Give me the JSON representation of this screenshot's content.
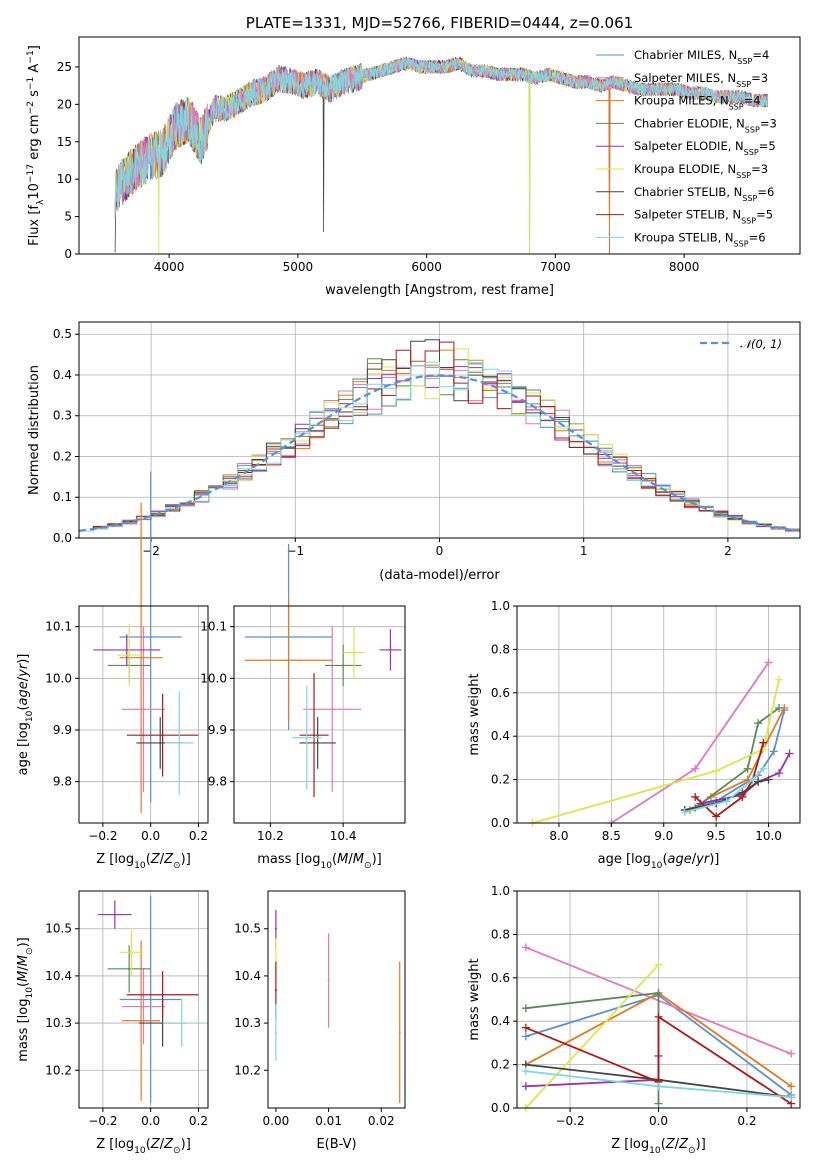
{
  "chart_data": [
    {
      "id": "spectrum",
      "type": "line",
      "title": "PLATE=1331, MJD=52766, FIBERID=0444, z=0.061",
      "xlabel": "wavelength [Angstrom, rest frame]",
      "ylabel": "Flux [fλ10⁻¹⁷ erg cm⁻² s⁻¹ A⁻¹]",
      "xlim": [
        3300,
        8900
      ],
      "ylim": [
        0,
        29
      ],
      "xticks": [
        4000,
        5000,
        6000,
        7000,
        8000
      ],
      "yticks": [
        0,
        5,
        10,
        15,
        20,
        25
      ],
      "grid": false,
      "legend_placement": "right",
      "data_envelope": {
        "x": [
          3580,
          3650,
          3750,
          3850,
          3950,
          4050,
          4150,
          4250,
          4350,
          4450,
          4550,
          4650,
          4750,
          4850,
          4950,
          5050,
          5150,
          5250,
          5350,
          5450,
          5550,
          5650,
          5750,
          5850,
          5950,
          6050,
          6150,
          6250,
          6350,
          6450,
          6550,
          6650,
          6750,
          6850,
          6950,
          7050,
          7150,
          7250,
          7350,
          7450,
          7550,
          7650,
          7750,
          7850,
          7950,
          8050,
          8150,
          8250,
          8350,
          8450,
          8550,
          8650
        ],
        "y": [
          8,
          10,
          11.5,
          13,
          13.5,
          17,
          18,
          15,
          19.5,
          19.5,
          20.5,
          21.5,
          22,
          23.5,
          23,
          22.5,
          23,
          22,
          23,
          23.5,
          24,
          24.5,
          25,
          25.5,
          25,
          25,
          25,
          25.5,
          24.5,
          24.5,
          24,
          24,
          24,
          23.5,
          24,
          23.5,
          23,
          23,
          22.5,
          23,
          22.5,
          22,
          22,
          22,
          22,
          21.5,
          21.5,
          21,
          21,
          21,
          20.5,
          20.5
        ]
      },
      "series": [
        {
          "name": "Chabrier MILES, N$_{SSP}$=4",
          "label": "Chabrier MILES, N",
          "sub": "SSP",
          "suffix": "=4",
          "color": "#5b8fd4"
        },
        {
          "name": "Salpeter MILES, N$_{SSP}$=3",
          "label": "Salpeter MILES, N",
          "sub": "SSP",
          "suffix": "=3",
          "color": "#e377c2"
        },
        {
          "name": "Kroupa MILES, N$_{SSP}$=4",
          "label": "Kroupa MILES, N",
          "sub": "SSP",
          "suffix": "=4",
          "color": "#e07b20"
        },
        {
          "name": "Chabrier ELODIE, N$_{SSP}$=3",
          "label": "Chabrier ELODIE, N",
          "sub": "SSP",
          "suffix": "=3",
          "color": "#5a8a5a"
        },
        {
          "name": "Salpeter ELODIE, N$_{SSP}$=5",
          "label": "Salpeter ELODIE, N",
          "sub": "SSP",
          "suffix": "=5",
          "color": "#9b30b0"
        },
        {
          "name": "Kroupa ELODIE, N$_{SSP}$=3",
          "label": "Kroupa ELODIE, N",
          "sub": "SSP",
          "suffix": "=3",
          "color": "#d8e84a"
        },
        {
          "name": "Chabrier STELIB, N$_{SSP}$=6",
          "label": "Chabrier STELIB, N",
          "sub": "SSP",
          "suffix": "=6",
          "color": "#444444"
        },
        {
          "name": "Salpeter STELIB, N$_{SSP}$=5",
          "label": "Salpeter STELIB, N",
          "sub": "SSP",
          "suffix": "=5",
          "color": "#b01818"
        },
        {
          "name": "Kroupa STELIB, N$_{SSP}$=6",
          "label": "Kroupa STELIB, N",
          "sub": "SSP",
          "suffix": "=6",
          "color": "#7fd6e0"
        }
      ]
    },
    {
      "id": "residuals",
      "type": "bar",
      "xlabel": "(data-model)/error",
      "ylabel": "Normed distribution",
      "xlim": [
        -2.5,
        2.5
      ],
      "ylim": [
        0,
        0.53
      ],
      "xticks": [
        -2,
        -1,
        0,
        1,
        2
      ],
      "yticks": [
        0.0,
        0.1,
        0.2,
        0.3,
        0.4,
        0.5
      ],
      "grid": true,
      "legend": "𝒩(0, 1)",
      "legend_placement": "top-right",
      "reference_curve": "gaussian mean 0 sigma 1",
      "bin_width": 0.1
    },
    {
      "id": "age-vs-Z",
      "type": "scatter",
      "xlabel": "Z [log10(Z/Z⊙)]",
      "ylabel": "age [log10(age/yr)]",
      "xlim": [
        -0.3,
        0.24
      ],
      "ylim": [
        9.72,
        10.14
      ],
      "xticks": [
        -0.2,
        0.0,
        0.2
      ],
      "yticks": [
        9.8,
        9.9,
        10.0,
        10.1
      ],
      "grid": true,
      "points": [
        {
          "x": 0.0,
          "y": 10.08,
          "xerr": 0.13,
          "yerr": 0.32,
          "color": "#5b8fd4"
        },
        {
          "x": -0.03,
          "y": 9.94,
          "xerr": 0.09,
          "yerr": 0.16,
          "color": "#e377c2"
        },
        {
          "x": -0.04,
          "y": 10.04,
          "xerr": 0.09,
          "yerr": 0.3,
          "color": "#e07b20"
        },
        {
          "x": -0.09,
          "y": 10.025,
          "xerr": 0.09,
          "yerr": 0.03,
          "color": "#5a8a5a"
        },
        {
          "x": -0.1,
          "y": 10.055,
          "xerr": 0.14,
          "yerr": 0.03,
          "color": "#9b30b0"
        },
        {
          "x": -0.09,
          "y": 10.045,
          "xerr": 0.05,
          "yerr": 0.06,
          "color": "#d8e84a"
        },
        {
          "x": 0.04,
          "y": 9.875,
          "xerr": 0.1,
          "yerr": 0.05,
          "color": "#444444"
        },
        {
          "x": 0.05,
          "y": 9.89,
          "xerr": 0.15,
          "yerr": 0.08,
          "color": "#b01818"
        },
        {
          "x": 0.12,
          "y": 9.875,
          "xerr": 0.06,
          "yerr": 0.1,
          "color": "#7fd6e0"
        }
      ]
    },
    {
      "id": "age-vs-mass",
      "type": "scatter",
      "xlabel": "mass [log10(M/M⊙)]",
      "ylabel": "",
      "xlim": [
        10.1,
        10.57
      ],
      "ylim": [
        9.72,
        10.14
      ],
      "xticks": [
        10.2,
        10.4
      ],
      "yticks": [
        9.8,
        9.9,
        10.0,
        10.1
      ],
      "grid": true,
      "points": [
        {
          "x": 10.25,
          "y": 10.08,
          "xerr": 0.12,
          "yerr": 0.18,
          "color": "#5b8fd4"
        },
        {
          "x": 10.37,
          "y": 9.94,
          "xerr": 0.08,
          "yerr": 0.16,
          "color": "#e377c2"
        },
        {
          "x": 10.25,
          "y": 10.035,
          "xerr": 0.12,
          "yerr": 0.12,
          "color": "#e07b20"
        },
        {
          "x": 10.4,
          "y": 10.025,
          "xerr": 0.05,
          "yerr": 0.04,
          "color": "#5a8a5a"
        },
        {
          "x": 10.53,
          "y": 10.055,
          "xerr": 0.03,
          "yerr": 0.04,
          "color": "#9b30b0"
        },
        {
          "x": 10.43,
          "y": 10.05,
          "xerr": 0.03,
          "yerr": 0.05,
          "color": "#d8e84a"
        },
        {
          "x": 10.33,
          "y": 9.875,
          "xerr": 0.05,
          "yerr": 0.05,
          "color": "#444444"
        },
        {
          "x": 10.32,
          "y": 9.89,
          "xerr": 0.04,
          "yerr": 0.12,
          "color": "#b01818"
        },
        {
          "x": 10.3,
          "y": 9.885,
          "xerr": 0.04,
          "yerr": 0.1,
          "color": "#7fd6e0"
        }
      ]
    },
    {
      "id": "weights-vs-age",
      "type": "line",
      "xlabel": "age [log10(age/yr)]",
      "ylabel": "mass weight",
      "xlim": [
        7.6,
        10.3
      ],
      "ylim": [
        0,
        1
      ],
      "xticks": [
        8.0,
        8.5,
        9.0,
        9.5,
        10.0
      ],
      "yticks": [
        0.0,
        0.2,
        0.4,
        0.6,
        0.8,
        1.0
      ],
      "grid": true,
      "series": [
        {
          "color": "#5b8fd4",
          "x": [
            9.2,
            9.5,
            9.9,
            10.05,
            10.15
          ],
          "y": [
            0.06,
            0.1,
            0.22,
            0.33,
            0.52
          ]
        },
        {
          "color": "#e377c2",
          "x": [
            8.5,
            9.3,
            10.0
          ],
          "y": [
            0.0,
            0.25,
            0.74
          ]
        },
        {
          "color": "#e07b20",
          "x": [
            9.25,
            9.45,
            9.8,
            10.15
          ],
          "y": [
            0.06,
            0.12,
            0.2,
            0.53
          ]
        },
        {
          "color": "#5a8a5a",
          "x": [
            9.3,
            9.8,
            9.9,
            10.1
          ],
          "y": [
            0.07,
            0.25,
            0.46,
            0.53
          ]
        },
        {
          "color": "#9b30b0",
          "x": [
            9.35,
            9.75,
            9.9,
            10.1,
            10.2
          ],
          "y": [
            0.09,
            0.13,
            0.19,
            0.23,
            0.32
          ]
        },
        {
          "color": "#d8e84a",
          "x": [
            7.75,
            9.5,
            9.95,
            10.1
          ],
          "y": [
            0.0,
            0.24,
            0.34,
            0.66
          ]
        },
        {
          "color": "#444444",
          "x": [
            9.2,
            9.5,
            9.75,
            9.9,
            10.0
          ],
          "y": [
            0.06,
            0.09,
            0.14,
            0.19,
            0.2
          ]
        },
        {
          "color": "#b01818",
          "x": [
            9.3,
            9.5,
            9.75,
            9.85,
            9.95
          ],
          "y": [
            0.12,
            0.03,
            0.12,
            0.2,
            0.37
          ]
        },
        {
          "color": "#7fd6e0",
          "x": [
            9.2,
            9.6,
            9.85,
            9.95
          ],
          "y": [
            0.05,
            0.1,
            0.2,
            0.25
          ]
        }
      ]
    },
    {
      "id": "mass-vs-Z",
      "type": "scatter",
      "xlabel": "Z [log10(Z/Z⊙)]",
      "ylabel": "mass [log10(M/M⊙)]",
      "xlim": [
        -0.3,
        0.24
      ],
      "ylim": [
        10.12,
        10.58
      ],
      "xticks": [
        -0.2,
        0.0,
        0.2
      ],
      "yticks": [
        10.2,
        10.3,
        10.4,
        10.5
      ],
      "grid": true,
      "points": [
        {
          "x": 0.0,
          "y": 10.35,
          "xerr": 0.13,
          "yerr": 0.22,
          "color": "#5b8fd4"
        },
        {
          "x": -0.03,
          "y": 10.335,
          "xerr": 0.09,
          "yerr": 0.08,
          "color": "#e377c2"
        },
        {
          "x": -0.04,
          "y": 10.305,
          "xerr": 0.08,
          "yerr": 0.17,
          "color": "#e07b20"
        },
        {
          "x": -0.09,
          "y": 10.415,
          "xerr": 0.09,
          "yerr": 0.05,
          "color": "#5a8a5a"
        },
        {
          "x": -0.15,
          "y": 10.53,
          "xerr": 0.07,
          "yerr": 0.03,
          "color": "#9b30b0"
        },
        {
          "x": -0.08,
          "y": 10.45,
          "xerr": 0.05,
          "yerr": 0.05,
          "color": "#d8e84a"
        },
        {
          "x": 0.05,
          "y": 10.3,
          "xerr": 0.1,
          "yerr": 0.05,
          "color": "#444444"
        },
        {
          "x": 0.05,
          "y": 10.36,
          "xerr": 0.15,
          "yerr": 0.05,
          "color": "#b01818"
        },
        {
          "x": 0.13,
          "y": 10.3,
          "xerr": 0.08,
          "yerr": 0.05,
          "color": "#7fd6e0"
        }
      ]
    },
    {
      "id": "mass-vs-ebv",
      "type": "scatter",
      "xlabel": "E(B-V)",
      "ylabel": "",
      "xlim": [
        -0.0015,
        0.0245
      ],
      "ylim": [
        10.12,
        10.58
      ],
      "xticks": [
        0.0,
        0.01,
        0.02
      ],
      "yticks": [
        10.2,
        10.3,
        10.4,
        10.5
      ],
      "grid": false,
      "points": [
        {
          "x": 0.0,
          "y": 10.5,
          "yerr": 0.04,
          "color": "#9b30b0"
        },
        {
          "x": 0.0,
          "y": 10.43,
          "yerr": 0.05,
          "color": "#d8e84a"
        },
        {
          "x": 0.0,
          "y": 10.37,
          "yerr": 0.06,
          "color": "#b01818"
        },
        {
          "x": 0.0,
          "y": 10.28,
          "yerr": 0.06,
          "color": "#7fd6e0"
        },
        {
          "x": 0.01,
          "y": 10.39,
          "yerr": 0.1,
          "color": "#e377c2"
        },
        {
          "x": 0.0235,
          "y": 10.28,
          "yerr": 0.15,
          "color": "#e07b20"
        }
      ]
    },
    {
      "id": "weights-vs-Z",
      "type": "line",
      "xlabel": "Z [log10(Z/Z⊙)]",
      "ylabel": "mass weight",
      "xlim": [
        -0.32,
        0.32
      ],
      "ylim": [
        0,
        1
      ],
      "xticks": [
        -0.2,
        0.0,
        0.2
      ],
      "yticks": [
        0.0,
        0.2,
        0.4,
        0.6,
        0.8,
        1.0
      ],
      "grid": true,
      "series": [
        {
          "color": "#5b8fd4",
          "x": [
            -0.3,
            0.0,
            0.3
          ],
          "y": [
            0.33,
            0.52,
            0.06
          ]
        },
        {
          "color": "#e377c2",
          "x": [
            -0.3,
            0.3
          ],
          "y": [
            0.74,
            0.25
          ]
        },
        {
          "color": "#e07b20",
          "x": [
            -0.3,
            0.0,
            0.3
          ],
          "y": [
            0.2,
            0.53,
            0.1
          ]
        },
        {
          "color": "#5a8a5a",
          "x": [
            -0.3,
            0.0,
            0.0
          ],
          "y": [
            0.46,
            0.53,
            0.02
          ]
        },
        {
          "color": "#9b30b0",
          "x": [
            -0.3,
            0.0,
            0.0
          ],
          "y": [
            0.1,
            0.13,
            0.24
          ]
        },
        {
          "color": "#d8e84a",
          "x": [
            -0.3,
            0.0
          ],
          "y": [
            0.0,
            0.66
          ]
        },
        {
          "color": "#444444",
          "x": [
            -0.3,
            0.0,
            0.3
          ],
          "y": [
            0.2,
            0.13,
            0.05
          ]
        },
        {
          "color": "#b01818",
          "x": [
            -0.3,
            0.0,
            0.0,
            0.3
          ],
          "y": [
            0.37,
            0.12,
            0.42,
            0.02
          ]
        },
        {
          "color": "#7fd6e0",
          "x": [
            -0.3,
            0.0,
            0.3
          ],
          "y": [
            0.17,
            0.1,
            0.05
          ]
        }
      ]
    }
  ]
}
